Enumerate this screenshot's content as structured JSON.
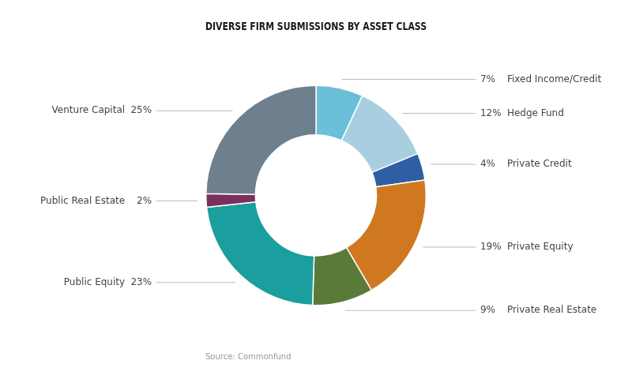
{
  "chart_data": {
    "type": "doughnut",
    "title": "DIVERSE FIRM SUBMISSIONS BY ASSET CLASS",
    "annotations": [
      "Source: Commonfund"
    ],
    "categories": [
      "Fixed Income/Credit",
      "Hedge Fund",
      "Private Credit",
      "Private Equity",
      "Private Real Estate",
      "Public Equity",
      "Public Real Estate",
      "Venture Capital"
    ],
    "values": [
      7,
      12,
      4,
      19,
      9,
      23,
      2,
      25
    ],
    "value_labels": [
      "7%",
      "12%",
      "4%",
      "19%",
      "9%",
      "23%",
      "2%",
      "25%"
    ],
    "colors": [
      "#6bbfd6",
      "#a8cfe0",
      "#2e5fa3",
      "#d07820",
      "#5a7a3a",
      "#1a9e9e",
      "#7b3060",
      "#6e7f8d"
    ],
    "data_labels": true
  }
}
